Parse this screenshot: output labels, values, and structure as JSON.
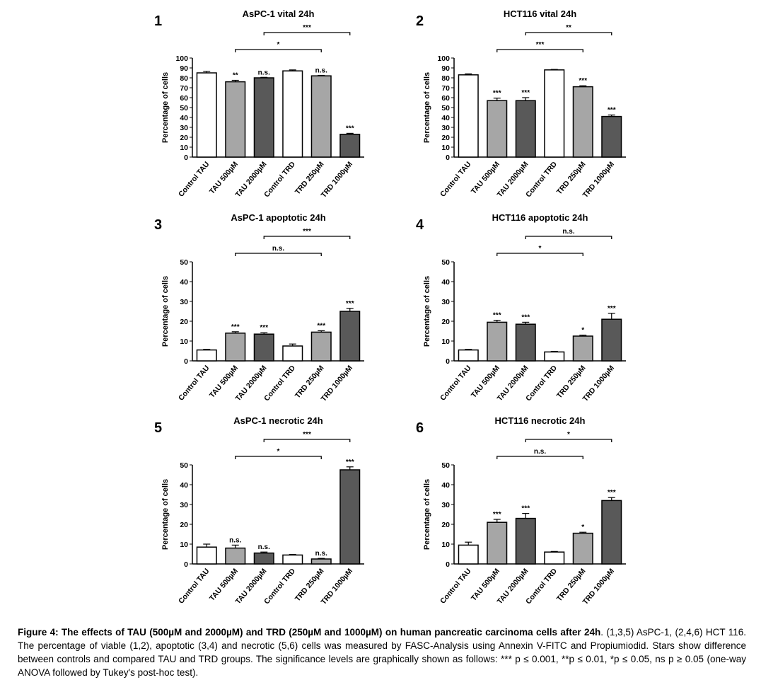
{
  "chart_data": [
    {
      "type": "bar",
      "panel": "1",
      "title": "AsPC-1 vital 24h",
      "ylabel": "Percentage of cells",
      "categories": [
        "Control TAU",
        "TAU 500µM",
        "TAU 2000µM",
        "Control TRD",
        "TRD 250µM",
        "TRD 1000µM"
      ],
      "values": [
        85,
        76,
        80,
        87,
        82,
        23
      ],
      "errors": [
        1.5,
        1.5,
        0.5,
        1,
        0.5,
        1
      ],
      "annotations": [
        null,
        "**",
        "n.s.",
        null,
        "n.s.",
        "***"
      ],
      "colors": [
        "#ffffff",
        "#a6a6a6",
        "#595959",
        "#ffffff",
        "#a6a6a6",
        "#595959"
      ],
      "comparisons": [
        {
          "from": 1,
          "to": 4,
          "label": "*"
        },
        {
          "from": 2,
          "to": 5,
          "label": "***"
        }
      ],
      "ylim": [
        0,
        100
      ],
      "yticks": [
        0,
        10,
        20,
        30,
        40,
        50,
        60,
        70,
        80,
        90,
        100
      ]
    },
    {
      "type": "bar",
      "panel": "2",
      "title": "HCT116 vital 24h",
      "ylabel": "Percentage of cells",
      "categories": [
        "Control TAU",
        "TAU 500µM",
        "TAU 2000µM",
        "Control TRD",
        "TRD 250µM",
        "TRD 1000µM"
      ],
      "values": [
        83,
        57,
        57,
        88,
        71,
        41
      ],
      "errors": [
        1,
        2.5,
        3,
        0.5,
        1,
        1.5
      ],
      "annotations": [
        null,
        "***",
        "***",
        null,
        "***",
        "***"
      ],
      "colors": [
        "#ffffff",
        "#a6a6a6",
        "#595959",
        "#ffffff",
        "#a6a6a6",
        "#595959"
      ],
      "comparisons": [
        {
          "from": 1,
          "to": 4,
          "label": "***"
        },
        {
          "from": 2,
          "to": 5,
          "label": "**"
        }
      ],
      "ylim": [
        0,
        100
      ],
      "yticks": [
        0,
        10,
        20,
        30,
        40,
        50,
        60,
        70,
        80,
        90,
        100
      ]
    },
    {
      "type": "bar",
      "panel": "3",
      "title": "AsPC-1 apoptotic 24h",
      "ylabel": "Percentage of cells",
      "categories": [
        "Control TAU",
        "TAU 500µM",
        "TAU 2000µM",
        "Control TRD",
        "TRD 250µM",
        "TRD 1000µM"
      ],
      "values": [
        5.5,
        14,
        13.5,
        7.5,
        14.5,
        25
      ],
      "errors": [
        0.3,
        0.7,
        0.7,
        1,
        0.7,
        1.5
      ],
      "annotations": [
        null,
        "***",
        "***",
        null,
        "***",
        "***"
      ],
      "colors": [
        "#ffffff",
        "#a6a6a6",
        "#595959",
        "#ffffff",
        "#a6a6a6",
        "#595959"
      ],
      "comparisons": [
        {
          "from": 1,
          "to": 4,
          "label": "n.s."
        },
        {
          "from": 2,
          "to": 5,
          "label": "***"
        }
      ],
      "ylim": [
        0,
        50
      ],
      "yticks": [
        0,
        10,
        20,
        30,
        40,
        50
      ]
    },
    {
      "type": "bar",
      "panel": "4",
      "title": "HCT116 apoptotic 24h",
      "ylabel": "Percentage of cells",
      "categories": [
        "Control TAU",
        "TAU 500µM",
        "TAU 2000µM",
        "Control TRD",
        "TRD 250µM",
        "TRD 1000µM"
      ],
      "values": [
        5.5,
        19.5,
        18.5,
        4.5,
        12.5,
        21
      ],
      "errors": [
        0.3,
        1,
        1,
        0.3,
        0.5,
        3
      ],
      "annotations": [
        null,
        "***",
        "***",
        null,
        "*",
        "***"
      ],
      "colors": [
        "#ffffff",
        "#a6a6a6",
        "#595959",
        "#ffffff",
        "#a6a6a6",
        "#595959"
      ],
      "comparisons": [
        {
          "from": 1,
          "to": 4,
          "label": "*"
        },
        {
          "from": 2,
          "to": 5,
          "label": "n.s."
        }
      ],
      "ylim": [
        0,
        50
      ],
      "yticks": [
        0,
        10,
        20,
        30,
        40,
        50
      ]
    },
    {
      "type": "bar",
      "panel": "5",
      "title": "AsPC-1 necrotic 24h",
      "ylabel": "Percentage of cells",
      "categories": [
        "Control TAU",
        "TAU 500µM",
        "TAU 2000µM",
        "Control TRD",
        "TRD 250µM",
        "TRD 1000µM"
      ],
      "values": [
        8.5,
        8,
        5.5,
        4.5,
        2.5,
        47.5
      ],
      "errors": [
        1.5,
        1.5,
        0.5,
        0.3,
        0.3,
        1.5
      ],
      "annotations": [
        null,
        "n.s.",
        "n.s.",
        null,
        "n.s.",
        "***"
      ],
      "colors": [
        "#ffffff",
        "#a6a6a6",
        "#595959",
        "#ffffff",
        "#a6a6a6",
        "#595959"
      ],
      "comparisons": [
        {
          "from": 1,
          "to": 4,
          "label": "*"
        },
        {
          "from": 2,
          "to": 5,
          "label": "***"
        }
      ],
      "ylim": [
        0,
        50
      ],
      "yticks": [
        0,
        10,
        20,
        30,
        40,
        50
      ]
    },
    {
      "type": "bar",
      "panel": "6",
      "title": "HCT116 necrotic 24h",
      "ylabel": "Percentage of cells",
      "categories": [
        "Control TAU",
        "TAU 500µM",
        "TAU 2000µM",
        "Control TRD",
        "TRD 250µM",
        "TRD 1000µM"
      ],
      "values": [
        9.5,
        21,
        23,
        6,
        15.5,
        32
      ],
      "errors": [
        1.5,
        1.5,
        2.5,
        0.3,
        0.5,
        1.5
      ],
      "annotations": [
        null,
        "***",
        "***",
        null,
        "*",
        "***"
      ],
      "colors": [
        "#ffffff",
        "#a6a6a6",
        "#595959",
        "#ffffff",
        "#a6a6a6",
        "#595959"
      ],
      "comparisons": [
        {
          "from": 1,
          "to": 4,
          "label": "n.s."
        },
        {
          "from": 2,
          "to": 5,
          "label": "*"
        }
      ],
      "ylim": [
        0,
        50
      ],
      "yticks": [
        0,
        10,
        20,
        30,
        40,
        50
      ]
    }
  ],
  "caption": {
    "bold": "Figure 4: The effects of TAU (500µM and 2000µM) and TRD (250µM and 1000µM) on human pancreatic carcinoma cells after 24h",
    "text": ". (1,3,5) AsPC-1, (2,4,6) HCT 116. The percentage of viable (1,2), apoptotic (3,4) and necrotic (5,6) cells was measured by FASC-Analysis using Annexin V-FITC and Propiumiodid. Stars show difference between controls and compared TAU and TRD groups. The significance levels are graphically shown as follows: *** p ≤ 0.001, **p ≤ 0.01, *p ≤ 0.05, ns p ≥ 0.05 (one-way ANOVA followed by Tukey's post-hoc test)."
  }
}
